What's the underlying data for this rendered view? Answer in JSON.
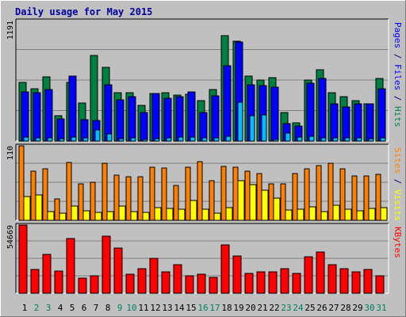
{
  "chart_data": [
    {
      "type": "bar",
      "title": "Daily usage for May 2015",
      "categories": [
        "1",
        "2",
        "3",
        "4",
        "5",
        "6",
        "7",
        "8",
        "9",
        "10",
        "11",
        "12",
        "13",
        "14",
        "15",
        "16",
        "17",
        "18",
        "19",
        "20",
        "21",
        "22",
        "23",
        "24",
        "25",
        "26",
        "27",
        "28",
        "29",
        "30",
        "31"
      ],
      "weekend_days": [
        "2",
        "3",
        "9",
        "10",
        "16",
        "17",
        "23",
        "24",
        "30",
        "31"
      ],
      "ymax_label": "1191",
      "ylim": [
        0,
        1191
      ],
      "right_labels": [
        {
          "text": "Pages",
          "color": "#0000ff"
        },
        {
          "text": " / ",
          "color": "#000080"
        },
        {
          "text": "Files",
          "color": "#0000ff"
        },
        {
          "text": " / ",
          "color": "#000080"
        },
        {
          "text": "Hits",
          "color": "#00805c"
        }
      ],
      "series": [
        {
          "name": "Hits",
          "color": "#008040",
          "values": [
            583,
            515,
            634,
            252,
            580,
            375,
            850,
            730,
            475,
            478,
            350,
            472,
            481,
            458,
            462,
            403,
            506,
            1044,
            987,
            641,
            606,
            626,
            280,
            181,
            602,
            705,
            480,
            436,
            397,
            365,
            619
          ]
        },
        {
          "name": "Files",
          "color": "#0000ff",
          "values": [
            485,
            479,
            509,
            219,
            640,
            209,
            200,
            559,
            409,
            435,
            285,
            472,
            420,
            436,
            482,
            283,
            448,
            741,
            980,
            559,
            547,
            536,
            173,
            150,
            574,
            617,
            366,
            336,
            368,
            367,
            516
          ]
        },
        {
          "name": "Pages",
          "color": "#00bfff",
          "values": [
            40,
            30,
            34,
            25,
            40,
            30,
            109,
            70,
            21,
            32,
            19,
            26,
            30,
            38,
            40,
            35,
            32,
            46,
            384,
            250,
            260,
            18,
            75,
            39,
            50,
            30,
            30,
            30,
            28,
            25,
            35
          ]
        }
      ]
    },
    {
      "type": "bar",
      "ymax_label": "110",
      "ylim": [
        0,
        110
      ],
      "right_labels": [
        {
          "text": "Sites",
          "color": "#ff8000"
        },
        {
          "text": " / ",
          "color": "#000080"
        },
        {
          "text": "Visits",
          "color": "#ffff00"
        }
      ],
      "series": [
        {
          "name": "Visits",
          "color": "#ffff00",
          "values": [
            35,
            38,
            13,
            11,
            21,
            14,
            12,
            13,
            21,
            13,
            12,
            19,
            18,
            16,
            29,
            16,
            10,
            19,
            58,
            53,
            44,
            33,
            15,
            16,
            20,
            13,
            22,
            16,
            14,
            18,
            19
          ]
        },
        {
          "name": "Sites",
          "color": "#ff8000",
          "values": [
            110,
            73,
            76,
            32,
            85,
            54,
            56,
            84,
            67,
            64,
            64,
            78,
            77,
            51,
            78,
            87,
            58,
            79,
            78,
            72,
            69,
            54,
            54,
            69,
            76,
            81,
            84,
            76,
            65,
            66,
            68
          ]
        }
      ]
    },
    {
      "type": "bar",
      "ymax_label": "54669",
      "ylim": [
        0,
        54669
      ],
      "right_labels": [
        {
          "text": "KBytes",
          "color": "#ff0000"
        }
      ],
      "series": [
        {
          "name": "KBytes",
          "color": "#ff0000",
          "values": [
            54669,
            19000,
            31000,
            17500,
            44000,
            12000,
            14000,
            46000,
            36000,
            15000,
            20000,
            28000,
            17000,
            23000,
            14000,
            15000,
            13000,
            39000,
            30000,
            16000,
            17000,
            17000,
            20000,
            16000,
            29000,
            33000,
            23000,
            20000,
            17000,
            19000,
            14000
          ]
        }
      ]
    }
  ]
}
